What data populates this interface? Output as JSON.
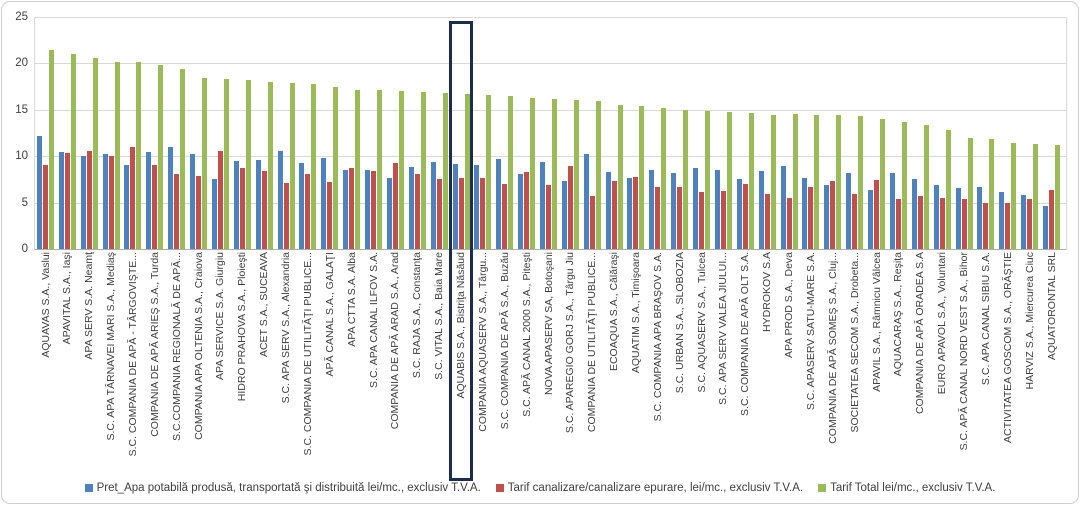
{
  "chart": {
    "y_ticks": [
      25,
      20,
      15,
      10,
      5,
      0
    ],
    "highlight_category": "AQUABIS S.A., Bistriţa Năsăud",
    "highlight_color": "#1b2d4f",
    "gridline_color": "#d9d9d9"
  },
  "legend": {
    "items": [
      {
        "label": "Pret_Apa potabilă produsă, transportată şi distribuită lei/mc., exclusiv T.V.A.",
        "color": "#4f81bd"
      },
      {
        "label": "Tarif canalizare/canalizare epurare, lei/mc., exclusiv T.V.A.",
        "color": "#c0504d"
      },
      {
        "label": "Tarif Total  lei/mc., exclusiv T.V.A.",
        "color": "#9bbb59"
      }
    ]
  },
  "chart_data": {
    "type": "bar",
    "title": "",
    "xlabel": "",
    "ylabel": "",
    "ylim": [
      0,
      25
    ],
    "grid": true,
    "legend_position": "bottom",
    "highlight_index": 19,
    "categories": [
      "AQUAVAS S.A., Vaslui",
      "APAVITAL S.A., Iaşi",
      "APA SERV S.A. Neamţ",
      "S.C. APA TÂRNAVEI MARI S.A., Mediaş",
      "S.C. COMPANIA DE APĂ - TÂRGOVIŞTE...",
      "COMPANIA DE APĂ ARIEŞ S.A., Turda",
      "S.C.COMPANIA REGIONALĂ DE APĂ...",
      "COMPANIA APA OLTENIA S.A., Craiova",
      "APA SERVICE S.A. Giurgiu",
      "HIDRO PRAHOVA S.A., Ploieşti",
      "ACET S.A., SUCEAVA",
      "S.C. APA SERV S.A., Alexandria",
      "S.C. COMPANIA DE UTILITĂŢI PUBLICE...",
      "APĂ CANAL S.A., GALAŢI",
      "APA CTTA S.A. Alba",
      "S.C. APA CANAL ILFOV S.A.",
      "COMPANIA DE APĂ ARAD S.A., Arad",
      "S.C. RAJA S.A., Constanţa",
      "S.C. VITAL S.A., Baia Mare",
      "AQUABIS S.A., Bistriţa Năsăud",
      "COMPANIA AQUASERV S.A., Târgu...",
      "S.C. COMPANIA DE APĂ S.A., Buzău",
      "S.C. APĂ CANAL 2000 S.A., Piteşti",
      "NOVA APASERV SA, Botoşani",
      "S.C. APAREGIO GORJ S.A., Târgu Jiu",
      "COMPANIA DE UTILITĂŢI PUBLICE...",
      "ECOAQUA S.A., Călăraşi",
      "AQUATIM S.A., Timişoara",
      "S.C. COMPANIA APA BRAŞOV S.A.",
      "S.C. URBAN S.A., SLOBOZIA",
      "S.C. AQUASERV S.A., Tulcea",
      "S.C. APA SERV VALEA JIULUI...",
      "S.C. COMPANIA DE APĂ OLT S.A.",
      "HYDROKOV S.A",
      "APA PROD S.A., Deva",
      "S.C. APASERV SATU-MARE S.A.",
      "COMPANIA DE APĂ SOMEŞ S.A., Cluj...",
      "SOCIETATEA SECOM S.A., Drobeta...",
      "APAVIL S.A., Râmnicu Vâlcea",
      "AQUACARAŞ S.A., Reşiţa",
      "COMPANIA DE APĂ ORADEA S.A",
      "EURO APAVOL S.A., Voluntari",
      "S.C. APĂ CANAL NORD VEST S.A., Bihor",
      "S.C. APA CANAL SIBIU S.A.",
      "ACTIVITATEA GOSCOM S.A., ORĂŞTIE",
      "HARVIZ S.A., Miercurea Ciuc",
      "AQUATORONTAL SRL"
    ],
    "series": [
      {
        "name": "Pret_Apa potabilă produsă, transportată şi distribuită lei/mc., exclusiv T.V.A.",
        "color": "#4f81bd",
        "values": [
          12.2,
          10.5,
          10.0,
          10.2,
          9.0,
          10.5,
          11.0,
          10.2,
          7.5,
          9.5,
          9.6,
          10.6,
          9.3,
          9.8,
          8.5,
          8.5,
          7.7,
          8.8,
          9.4,
          9.2,
          9.0,
          9.7,
          8.1,
          9.4,
          7.3,
          10.2,
          8.3,
          7.6,
          8.5,
          8.2,
          8.7,
          8.5,
          7.5,
          8.4,
          8.9,
          7.7,
          6.9,
          8.2,
          6.4,
          8.2,
          7.5,
          6.9,
          6.6,
          6.7,
          6.1,
          5.8,
          4.6
        ]
      },
      {
        "name": "Tarif canalizare/canalizare epurare, lei/mc., exclusiv T.V.A.",
        "color": "#c0504d",
        "values": [
          9.0,
          10.4,
          10.6,
          10.0,
          11.0,
          9.0,
          8.1,
          7.9,
          10.6,
          8.7,
          8.4,
          7.1,
          8.1,
          7.2,
          8.7,
          8.4,
          9.3,
          8.1,
          7.5,
          7.6,
          7.7,
          7.0,
          8.3,
          6.9,
          8.9,
          5.7,
          7.3,
          7.8,
          6.7,
          6.7,
          6.1,
          6.2,
          7.0,
          5.9,
          5.5,
          6.7,
          7.3,
          5.9,
          7.4,
          5.4,
          5.7,
          5.5,
          5.4,
          5.0,
          5.0,
          5.4,
          6.4
        ]
      },
      {
        "name": "Tarif Total  lei/mc., exclusiv T.V.A.",
        "color": "#9bbb59",
        "values": [
          21.4,
          21.0,
          20.6,
          20.2,
          20.1,
          19.8,
          19.4,
          18.4,
          18.3,
          18.2,
          18.0,
          17.9,
          17.8,
          17.5,
          17.1,
          17.1,
          17.0,
          16.9,
          16.8,
          16.7,
          16.6,
          16.5,
          16.3,
          16.2,
          16.1,
          15.9,
          15.5,
          15.4,
          15.2,
          15.0,
          14.9,
          14.8,
          14.7,
          14.4,
          14.5,
          14.4,
          14.4,
          14.3,
          14.0,
          13.7,
          13.4,
          12.8,
          12.0,
          11.9,
          11.4,
          11.3,
          11.2
        ]
      }
    ]
  }
}
